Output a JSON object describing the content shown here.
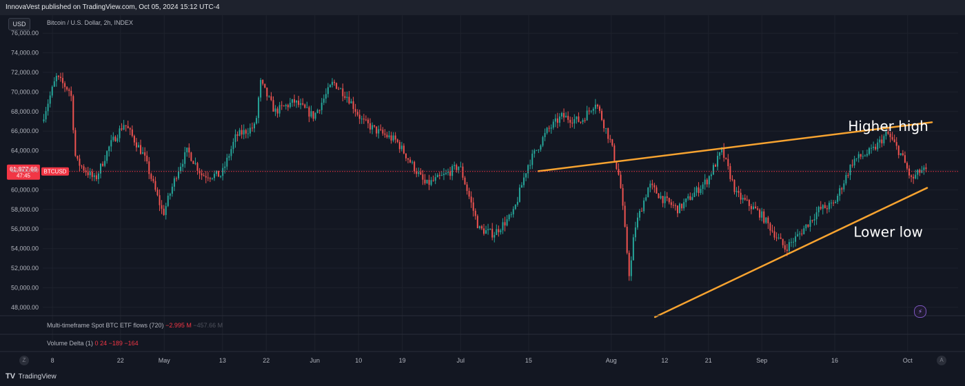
{
  "header": {
    "published_line": "InnovaVest published on TradingView.com, Oct 05, 2024 15:12 UTC-4",
    "currency_button": "USD",
    "symbol_description": "Bitcoin / U.S. Dollar, 2h, INDEX"
  },
  "indicators": {
    "etf_flows": {
      "label": "Multi-timeframe Spot BTC ETF flows (720)",
      "value1": "−2.995 M",
      "value2": "−457.66 M"
    },
    "volume_delta": {
      "label": "Volume Delta (1)",
      "values": [
        "0",
        "24",
        "−189",
        "−164"
      ]
    }
  },
  "price_tag": {
    "price": "61,877.66",
    "countdown": "47:45",
    "symbol": "BTCUSD"
  },
  "footer": {
    "brand": "TradingView",
    "z_label": "Z",
    "a_label": "A"
  },
  "colors": {
    "up": "#26a69a",
    "down": "#ef5350",
    "trendline": "#f7a330",
    "price_line": "#f23645",
    "background": "#131722"
  },
  "chart_data": {
    "type": "candlestick",
    "title": "Bitcoin / U.S. Dollar, 2h, INDEX",
    "ylim": [
      47000,
      77000
    ],
    "y_ticks": [
      48000,
      50000,
      52000,
      54000,
      56000,
      58000,
      60000,
      62000,
      64000,
      66000,
      68000,
      70000,
      72000,
      74000,
      76000
    ],
    "y_tick_labels": [
      "48,000.00",
      "50,000.00",
      "52,000.00",
      "54,000.00",
      "56,000.00",
      "58,000.00",
      "60,000.00",
      "62,000.00",
      "64,000.00",
      "66,000.00",
      "68,000.00",
      "70,000.00",
      "72,000.00",
      "74,000.00",
      "76,000.00"
    ],
    "x_range": [
      "2024-04-06",
      "2024-10-05"
    ],
    "x_ticks": [
      {
        "date": "2024-04-08",
        "label": "8"
      },
      {
        "date": "2024-04-22",
        "label": "22"
      },
      {
        "date": "2024-05-01",
        "label": "May"
      },
      {
        "date": "2024-05-13",
        "label": "13"
      },
      {
        "date": "2024-05-22",
        "label": "22"
      },
      {
        "date": "2024-06-01",
        "label": "Jun"
      },
      {
        "date": "2024-06-10",
        "label": "10"
      },
      {
        "date": "2024-06-19",
        "label": "19"
      },
      {
        "date": "2024-07-01",
        "label": "Jul"
      },
      {
        "date": "2024-07-15",
        "label": "15"
      },
      {
        "date": "2024-08-01",
        "label": "Aug"
      },
      {
        "date": "2024-08-12",
        "label": "12"
      },
      {
        "date": "2024-08-21",
        "label": "21"
      },
      {
        "date": "2024-09-01",
        "label": "Sep"
      },
      {
        "date": "2024-09-16",
        "label": "16"
      },
      {
        "date": "2024-10-01",
        "label": "Oct"
      }
    ],
    "price_path": [
      {
        "date": "2024-04-06",
        "price": 67000
      },
      {
        "date": "2024-04-09",
        "price": 71500
      },
      {
        "date": "2024-04-12",
        "price": 70000
      },
      {
        "date": "2024-04-13",
        "price": 63000
      },
      {
        "date": "2024-04-17",
        "price": 61000
      },
      {
        "date": "2024-04-20",
        "price": 64500
      },
      {
        "date": "2024-04-23",
        "price": 66800
      },
      {
        "date": "2024-04-27",
        "price": 63500
      },
      {
        "date": "2024-05-01",
        "price": 57500
      },
      {
        "date": "2024-05-04",
        "price": 62000
      },
      {
        "date": "2024-05-06",
        "price": 64000
      },
      {
        "date": "2024-05-09",
        "price": 61500
      },
      {
        "date": "2024-05-13",
        "price": 61500
      },
      {
        "date": "2024-05-16",
        "price": 65500
      },
      {
        "date": "2024-05-20",
        "price": 66500
      },
      {
        "date": "2024-05-21",
        "price": 71000
      },
      {
        "date": "2024-05-24",
        "price": 68000
      },
      {
        "date": "2024-05-28",
        "price": 69000
      },
      {
        "date": "2024-06-01",
        "price": 67500
      },
      {
        "date": "2024-06-05",
        "price": 71000
      },
      {
        "date": "2024-06-08",
        "price": 69500
      },
      {
        "date": "2024-06-11",
        "price": 67000
      },
      {
        "date": "2024-06-14",
        "price": 66000
      },
      {
        "date": "2024-06-18",
        "price": 65000
      },
      {
        "date": "2024-06-24",
        "price": 60500
      },
      {
        "date": "2024-06-28",
        "price": 61500
      },
      {
        "date": "2024-07-01",
        "price": 62500
      },
      {
        "date": "2024-07-05",
        "price": 56000
      },
      {
        "date": "2024-07-08",
        "price": 55500
      },
      {
        "date": "2024-07-12",
        "price": 57500
      },
      {
        "date": "2024-07-15",
        "price": 62500
      },
      {
        "date": "2024-07-19",
        "price": 66000
      },
      {
        "date": "2024-07-22",
        "price": 67500
      },
      {
        "date": "2024-07-26",
        "price": 67000
      },
      {
        "date": "2024-07-29",
        "price": 69000
      },
      {
        "date": "2024-08-01",
        "price": 65000
      },
      {
        "date": "2024-08-03",
        "price": 61000
      },
      {
        "date": "2024-08-05",
        "price": 51000
      },
      {
        "date": "2024-08-06",
        "price": 56000
      },
      {
        "date": "2024-08-09",
        "price": 60500
      },
      {
        "date": "2024-08-12",
        "price": 59000
      },
      {
        "date": "2024-08-15",
        "price": 58000
      },
      {
        "date": "2024-08-18",
        "price": 59500
      },
      {
        "date": "2024-08-21",
        "price": 61000
      },
      {
        "date": "2024-08-24",
        "price": 64000
      },
      {
        "date": "2024-08-27",
        "price": 59500
      },
      {
        "date": "2024-09-01",
        "price": 57500
      },
      {
        "date": "2024-09-06",
        "price": 54000
      },
      {
        "date": "2024-09-09",
        "price": 55500
      },
      {
        "date": "2024-09-13",
        "price": 58000
      },
      {
        "date": "2024-09-16",
        "price": 58500
      },
      {
        "date": "2024-09-20",
        "price": 63000
      },
      {
        "date": "2024-09-24",
        "price": 64000
      },
      {
        "date": "2024-09-27",
        "price": 65800
      },
      {
        "date": "2024-09-30",
        "price": 63500
      },
      {
        "date": "2024-10-02",
        "price": 61000
      },
      {
        "date": "2024-10-04",
        "price": 62000
      },
      {
        "date": "2024-10-05",
        "price": 61877.66
      }
    ],
    "current_price": 61877.66,
    "annotations": [
      {
        "text": "Higher high",
        "date": "2024-09-27",
        "price": 66000
      },
      {
        "text": "Lower low",
        "date": "2024-09-27",
        "price": 55200
      }
    ],
    "trendlines": [
      {
        "name": "upper",
        "start": {
          "date": "2024-07-17",
          "price": 61900
        },
        "end": {
          "date": "2024-10-06",
          "price": 66900
        }
      },
      {
        "name": "lower",
        "start": {
          "date": "2024-08-10",
          "price": 47000
        },
        "end": {
          "date": "2024-10-05",
          "price": 60200
        }
      }
    ]
  }
}
